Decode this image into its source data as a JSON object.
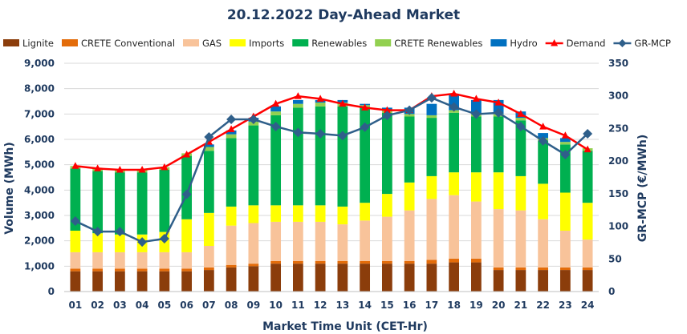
{
  "chart_data": {
    "type": "bar",
    "stacked": true,
    "title": "20.12.2022  Day-Ahead Market",
    "xlabel": "Market Time Unit (CET-Hr)",
    "ylabel": "Volume (MWh)",
    "y2label": "GR-MCP (€/MWh)",
    "ylim": [
      0,
      9000
    ],
    "y2lim": [
      0,
      350
    ],
    "yticks": [
      "0",
      "1,000",
      "2,000",
      "3,000",
      "4,000",
      "5,000",
      "6,000",
      "7,000",
      "8,000",
      "9,000"
    ],
    "y2ticks": [
      "0",
      "50",
      "100",
      "150",
      "200",
      "250",
      "300",
      "350"
    ],
    "grid": true,
    "legend_position": "top",
    "categories": [
      "01",
      "02",
      "03",
      "04",
      "05",
      "06",
      "07",
      "08",
      "09",
      "10",
      "11",
      "12",
      "13",
      "14",
      "15",
      "16",
      "17",
      "18",
      "19",
      "20",
      "21",
      "22",
      "23",
      "24"
    ],
    "series": [
      {
        "name": "Lignite",
        "color": "#8b3d0b",
        "values": [
          800,
          800,
          800,
          800,
          800,
          800,
          850,
          950,
          1000,
          1100,
          1100,
          1100,
          1100,
          1100,
          1100,
          1100,
          1100,
          1150,
          1150,
          850,
          850,
          850,
          850,
          850
        ]
      },
      {
        "name": "CRETE Conventional",
        "color": "#e36c0a",
        "values": [
          100,
          100,
          100,
          100,
          100,
          100,
          100,
          100,
          100,
          100,
          100,
          100,
          100,
          100,
          100,
          100,
          150,
          150,
          150,
          100,
          100,
          100,
          100,
          100
        ]
      },
      {
        "name": "GAS",
        "color": "#f8c39a",
        "values": [
          650,
          650,
          650,
          650,
          650,
          650,
          850,
          1550,
          1600,
          1550,
          1550,
          1550,
          1450,
          1600,
          1750,
          2000,
          2400,
          2500,
          2250,
          2300,
          2250,
          1900,
          1450,
          1100
        ]
      },
      {
        "name": "Imports",
        "color": "#ffff00",
        "values": [
          850,
          750,
          700,
          700,
          800,
          1300,
          1300,
          750,
          700,
          650,
          650,
          650,
          700,
          700,
          900,
          1100,
          900,
          900,
          1150,
          1450,
          1350,
          1400,
          1500,
          1450
        ]
      },
      {
        "name": "Renewables",
        "color": "#00b050",
        "values": [
          2450,
          2450,
          2450,
          2450,
          2450,
          2500,
          2450,
          2700,
          3150,
          3550,
          3850,
          3900,
          3950,
          3750,
          3200,
          2600,
          2300,
          2350,
          2200,
          2200,
          2200,
          1700,
          1900,
          2050
        ]
      },
      {
        "name": "CRETE Renewables",
        "color": "#92d050",
        "values": [
          100,
          100,
          100,
          100,
          100,
          100,
          150,
          150,
          150,
          150,
          150,
          150,
          150,
          100,
          100,
          100,
          100,
          100,
          100,
          100,
          100,
          100,
          100,
          100
        ]
      },
      {
        "name": "Hydro",
        "color": "#0070c0",
        "values": [
          0,
          0,
          0,
          0,
          0,
          0,
          100,
          150,
          150,
          200,
          150,
          100,
          100,
          50,
          100,
          250,
          450,
          650,
          550,
          550,
          250,
          200,
          150,
          0
        ]
      }
    ],
    "lines": [
      {
        "name": "Demand",
        "color": "#ff0000",
        "marker": "triangle",
        "axis": "left",
        "values": [
          4950,
          4850,
          4800,
          4800,
          4900,
          5400,
          5900,
          6400,
          6900,
          7400,
          7700,
          7600,
          7400,
          7250,
          7150,
          7150,
          7700,
          7800,
          7600,
          7450,
          7000,
          6500,
          6150,
          5600
        ]
      },
      {
        "name": "GR-MCP",
        "color": "#2f5f8a",
        "marker": "diamond",
        "axis": "right",
        "values": [
          108,
          92,
          92,
          76,
          81,
          149,
          237,
          264,
          264,
          253,
          244,
          242,
          239,
          252,
          270,
          278,
          297,
          283,
          272,
          274,
          253,
          231,
          210,
          242
        ]
      }
    ]
  }
}
